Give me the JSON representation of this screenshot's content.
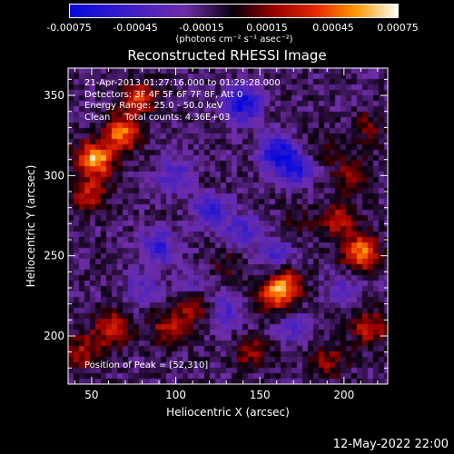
{
  "chart_data": {
    "type": "heatmap",
    "title": "Reconstructed RHESSI Image",
    "xlabel": "Heliocentric X (arcsec)",
    "ylabel": "Heliocentric Y (arcsec)",
    "xlim": [
      36,
      226
    ],
    "ylim": [
      170,
      367
    ],
    "x_ticks": [
      50,
      100,
      150,
      200
    ],
    "y_ticks": [
      200,
      250,
      300,
      350
    ],
    "colorbar": {
      "min": -0.00075,
      "max": 0.00075,
      "ticks": [
        "-0.00075",
        "-0.00045",
        "-0.00015",
        "0.00015",
        "0.00045",
        "0.00075"
      ],
      "unit": "(photons cm⁻² s⁻¹ asec⁻²)"
    },
    "annotations": [
      "21-Apr-2013 01:27:16.000 to 01:29:28.000",
      "Detectors: 3F 4F 5F 6F 7F 8F, Att 0",
      "Energy Range: 25.0 - 50.0 keV",
      "Clean     Total counts: 4.36E+03"
    ],
    "peak_label": "Position of Peak = [52,310]",
    "hotspots": [
      {
        "x": 52,
        "y": 310,
        "value": 0.00075
      },
      {
        "x": 68,
        "y": 326,
        "value": 0.0006
      },
      {
        "x": 78,
        "y": 348,
        "value": 0.00048
      },
      {
        "x": 48,
        "y": 288,
        "value": 0.0004
      },
      {
        "x": 210,
        "y": 252,
        "value": 0.00062
      },
      {
        "x": 197,
        "y": 272,
        "value": 0.00038
      },
      {
        "x": 165,
        "y": 232,
        "value": 0.0005
      },
      {
        "x": 158,
        "y": 225,
        "value": 0.0004
      },
      {
        "x": 110,
        "y": 218,
        "value": 0.00035
      },
      {
        "x": 95,
        "y": 205,
        "value": 0.00035
      },
      {
        "x": 62,
        "y": 205,
        "value": 0.00045
      },
      {
        "x": 45,
        "y": 190,
        "value": 0.00035
      },
      {
        "x": 145,
        "y": 190,
        "value": 0.0003
      },
      {
        "x": 190,
        "y": 185,
        "value": 0.0003
      },
      {
        "x": 215,
        "y": 205,
        "value": 0.0004
      },
      {
        "x": 205,
        "y": 300,
        "value": 0.0003
      },
      {
        "x": 215,
        "y": 330,
        "value": 0.0002
      },
      {
        "x": 185,
        "y": 315,
        "value": 0.00018
      },
      {
        "x": 130,
        "y": 245,
        "value": 0.00015
      },
      {
        "x": 115,
        "y": 290,
        "value": 0.00012
      },
      {
        "x": 172,
        "y": 270,
        "value": 0.00015
      }
    ],
    "coldspots": [
      {
        "x": 140,
        "y": 345,
        "value": -0.0006
      },
      {
        "x": 160,
        "y": 315,
        "value": -0.00055
      },
      {
        "x": 172,
        "y": 305,
        "value": -0.0005
      },
      {
        "x": 120,
        "y": 280,
        "value": -0.00045
      },
      {
        "x": 100,
        "y": 300,
        "value": -0.00035
      },
      {
        "x": 90,
        "y": 255,
        "value": -0.0004
      },
      {
        "x": 140,
        "y": 265,
        "value": -0.00035
      },
      {
        "x": 160,
        "y": 250,
        "value": -0.0003
      },
      {
        "x": 130,
        "y": 215,
        "value": -0.0003
      },
      {
        "x": 170,
        "y": 205,
        "value": -0.00025
      },
      {
        "x": 200,
        "y": 230,
        "value": -0.0002
      },
      {
        "x": 110,
        "y": 230,
        "value": -0.0002
      },
      {
        "x": 80,
        "y": 230,
        "value": -0.00025
      }
    ]
  },
  "footer_timestamp": "12-May-2022 22:00"
}
